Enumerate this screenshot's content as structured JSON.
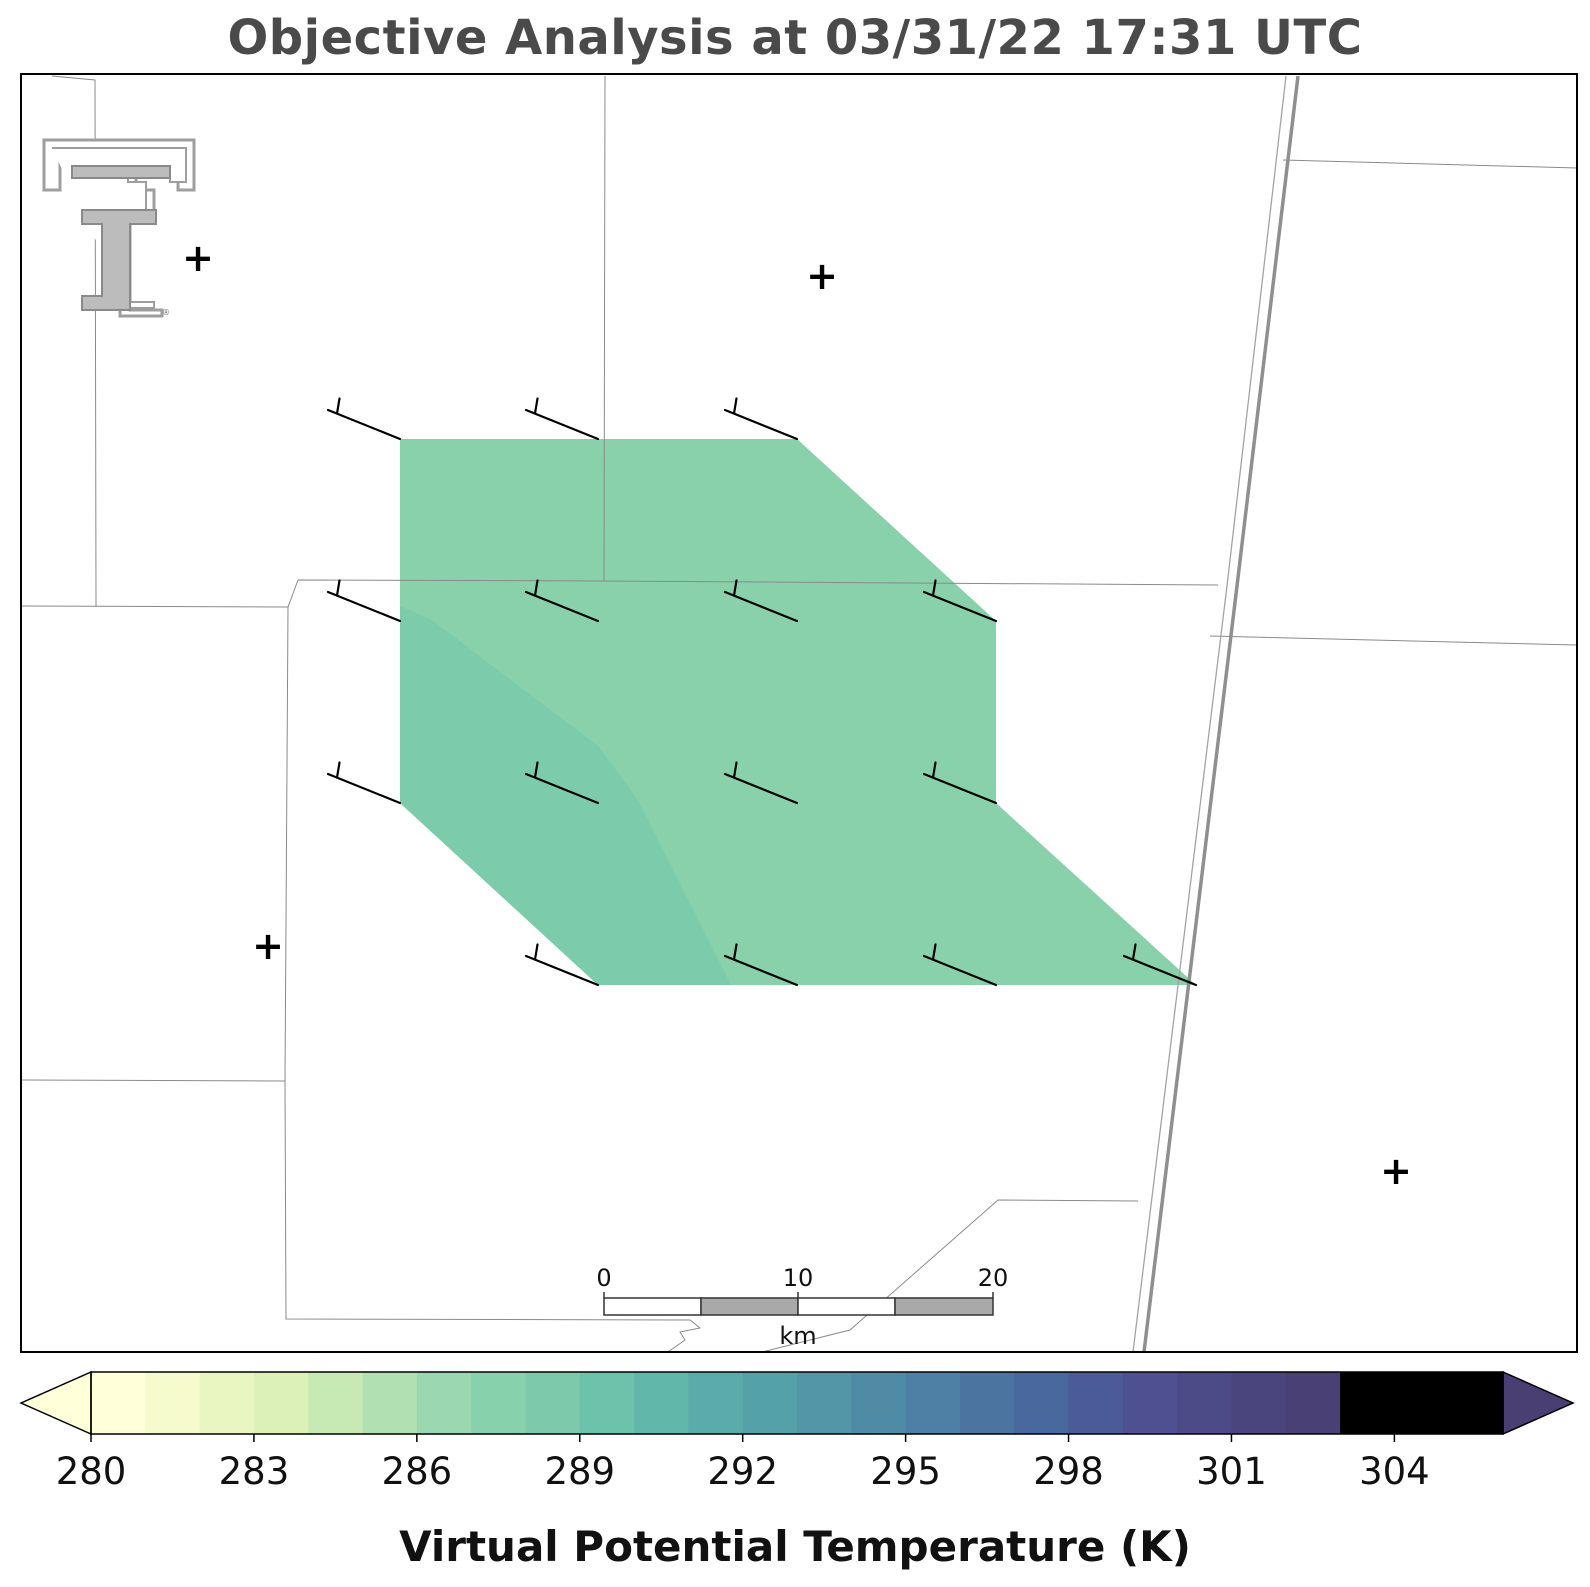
{
  "title": "Objective Analysis at 03/31/22 17:31 UTC",
  "colorbar": {
    "label": "Virtual Potential Temperature (K)",
    "min": 280,
    "max": 306,
    "step": 1,
    "ticks": [
      280,
      283,
      286,
      289,
      292,
      295,
      298,
      301,
      304
    ],
    "extend": "both",
    "colormap": [
      "#ffffd9",
      "#f6fbcd",
      "#e9f6c1",
      "#dcf1b7",
      "#c7e9b4",
      "#b1e0b3",
      "#9bd8b2",
      "#88d1ad",
      "#7ccaab",
      "#6cc2ab",
      "#62b7ab",
      "#5aacaa",
      "#55a1a9",
      "#5396a8",
      "#508ba6",
      "#4d80a4",
      "#4b74a1",
      "#49689e",
      "#4b5b9a",
      "#4e5092",
      "#4d4a88",
      "#4b457e",
      "#494176"
    ],
    "under_color": "#ffffd9",
    "over_color": "#4a3f73"
  },
  "scale_bar": {
    "labels": [
      "0",
      "10",
      "20"
    ],
    "unit": "km"
  },
  "analysis_field": {
    "units": "K",
    "main_value": 288.3,
    "western_band_value": 289.1
  },
  "station_marker": "+",
  "wind_barbs": {
    "count": 15,
    "direction": "west-northwest",
    "speed_class": "short barb"
  },
  "logo": {
    "text": "TT",
    "color": "#9e9e9e"
  }
}
